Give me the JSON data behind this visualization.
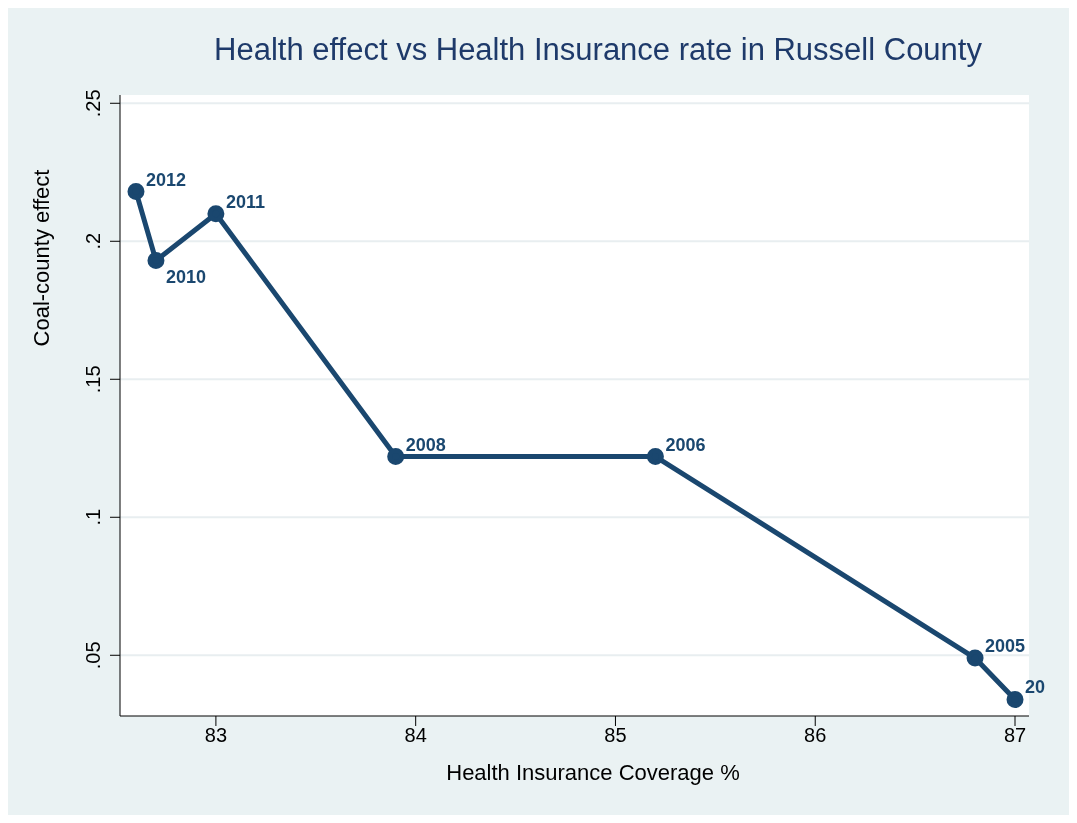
{
  "chart_data": {
    "type": "line",
    "title": "Health effect vs Health Insurance rate in Russell County",
    "xlabel": "Health Insurance Coverage %",
    "ylabel": "Coal-county effect",
    "x": [
      82.6,
      82.7,
      83,
      83.9,
      85.2,
      86.8,
      87
    ],
    "series": [
      {
        "color": "#1a476f",
        "values": [
          0.218,
          0.193,
          0.21,
          0.122,
          0.122,
          0.049,
          0.034
        ]
      }
    ],
    "annotations": [
      {
        "text": "2012",
        "x": 82.6,
        "y": 0.218
      },
      {
        "text": "2010",
        "x": 82.7,
        "y": 0.193
      },
      {
        "text": "2011",
        "x": 83,
        "y": 0.21
      },
      {
        "text": "2008",
        "x": 83.9,
        "y": 0.122
      },
      {
        "text": "2006",
        "x": 85.2,
        "y": 0.122
      },
      {
        "text": "2005",
        "x": 86.8,
        "y": 0.049
      },
      {
        "text": "20",
        "x": 87,
        "y": 0.034
      }
    ],
    "xlim": [
      82.52,
      87.07
    ],
    "xticks": [
      83,
      84,
      85,
      86,
      87
    ],
    "ylim": [
      0.028,
      0.253
    ],
    "yticks": [
      {
        "value": 0.05,
        "label": ".05"
      },
      {
        "value": 0.1,
        "label": ".1"
      },
      {
        "value": 0.15,
        "label": ".15"
      },
      {
        "value": 0.2,
        "label": ".2"
      },
      {
        "value": 0.25,
        "label": ".25"
      }
    ],
    "grid": "y",
    "marker": "circle",
    "line_style": "solid"
  }
}
